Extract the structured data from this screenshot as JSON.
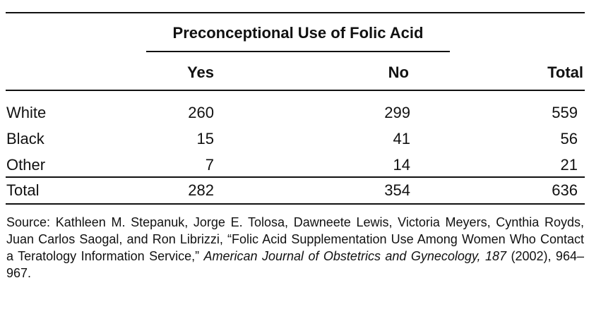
{
  "table": {
    "span_heading": "Preconceptional Use of Folic Acid",
    "columns": [
      "Yes",
      "No",
      "Total"
    ],
    "rows": [
      {
        "label": "White",
        "values": [
          "260",
          "299",
          "559"
        ]
      },
      {
        "label": "Black",
        "values": [
          "15",
          "41",
          "56"
        ]
      },
      {
        "label": "Other",
        "values": [
          "7",
          "14",
          "21"
        ]
      }
    ],
    "total_row": {
      "label": "Total",
      "values": [
        "282",
        "354",
        "636"
      ]
    }
  },
  "source": {
    "text_before": "Source: Kathleen M. Stepanuk, Jorge E. Tolosa, Dawneete Lewis, Victoria Meyers, Cynthia Royds, Juan Carlos Saogal, and Ron Librizzi, “Folic Acid Supplementation Use Among Women Who Contact a Teratology Information Service,”",
    "journal_italic": "American Journal of Obstetrics and Gynecology, 187",
    "text_after": "(2002), 964–967."
  }
}
